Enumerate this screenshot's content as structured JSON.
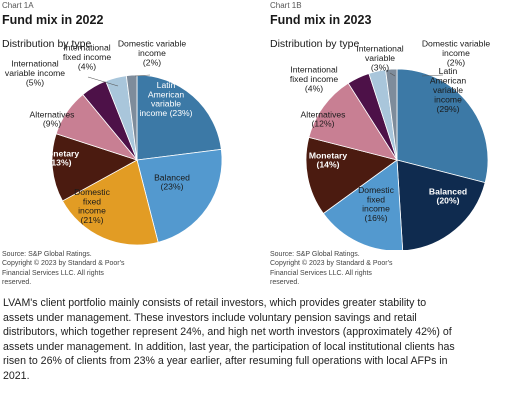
{
  "chart_data": [
    {
      "type": "pie",
      "chart_label": "Chart 1A",
      "title": "Fund mix in 2022",
      "subtitle": "Distribution by type",
      "slices": [
        {
          "label": [
            "Latin",
            "American",
            "variable",
            "income (23%)"
          ],
          "value": 23,
          "color": "#3c79a6"
        },
        {
          "label": [
            "Balanced",
            "(23%)"
          ],
          "value": 23,
          "color": "#5399cf"
        },
        {
          "label": [
            "Domestic",
            "fixed",
            "income",
            "(21%)"
          ],
          "value": 21,
          "color": "#e29c24"
        },
        {
          "label": [
            "Monetary",
            "(13%)"
          ],
          "value": 13,
          "color": "#4b1b10"
        },
        {
          "label": [
            "Alternatives",
            "(9%)"
          ],
          "value": 9,
          "color": "#c87f93"
        },
        {
          "label": [
            "International",
            "variable income",
            "(5%)"
          ],
          "value": 5,
          "color": "#4d1148"
        },
        {
          "label": [
            "International",
            "fixed income",
            "(4%)"
          ],
          "value": 4,
          "color": "#a9c6db"
        },
        {
          "label": [
            "Domestic variable",
            "income",
            "(2%)"
          ],
          "value": 2,
          "color": "#7e8c9b"
        }
      ],
      "source": [
        "Source: S&P Global Ratings.",
        "Copyright © 2023 by Standard & Poor's",
        "Financial Services LLC. All rights",
        "reserved."
      ]
    },
    {
      "type": "pie",
      "chart_label": "Chart 1B",
      "title": "Fund mix in 2023",
      "subtitle": "Distribution by type",
      "slices": [
        {
          "label": [
            "Latin",
            "American",
            "variable",
            "income",
            "(29%)"
          ],
          "value": 29,
          "color": "#3c79a6"
        },
        {
          "label": [
            "Balanced",
            "(20%)"
          ],
          "value": 20,
          "color": "#0f2b4f"
        },
        {
          "label": [
            "Domestic",
            "fixed",
            "income",
            "(16%)"
          ],
          "value": 16,
          "color": "#5399cf"
        },
        {
          "label": [
            "Monetary",
            "(14%)"
          ],
          "value": 14,
          "color": "#4b1b10"
        },
        {
          "label": [
            "Alternatives",
            "(12%)"
          ],
          "value": 12,
          "color": "#c87f93"
        },
        {
          "label": [
            "International",
            "fixed income",
            "(4%)"
          ],
          "value": 4,
          "color": "#4d1148"
        },
        {
          "label": [
            "International",
            "variable",
            "(3%)"
          ],
          "value": 3,
          "color": "#a9c6db"
        },
        {
          "label": [
            "Domestic variable",
            "income",
            "(2%)"
          ],
          "value": 2,
          "color": "#7e8c9b"
        }
      ],
      "source": [
        "Source: S&P Global Ratings.",
        "Copyright © 2023 by Standard & Poor's",
        "Financial Services LLC. All rights",
        "reserved."
      ]
    }
  ],
  "body_text": [
    "LVAM's client portfolio mainly consists of retail investors, which provides greater stability to",
    "assets under management. These investors include voluntary pension savings and retail",
    "distributors, which together represent 24%, and high net worth investors (approximately 42%) of",
    "assets under management. In addition, last year, the participation of local institutional clients has",
    "risen to 26% of clients from 23% a year earlier, after resuming full operations with local AFPs in",
    "2021."
  ]
}
